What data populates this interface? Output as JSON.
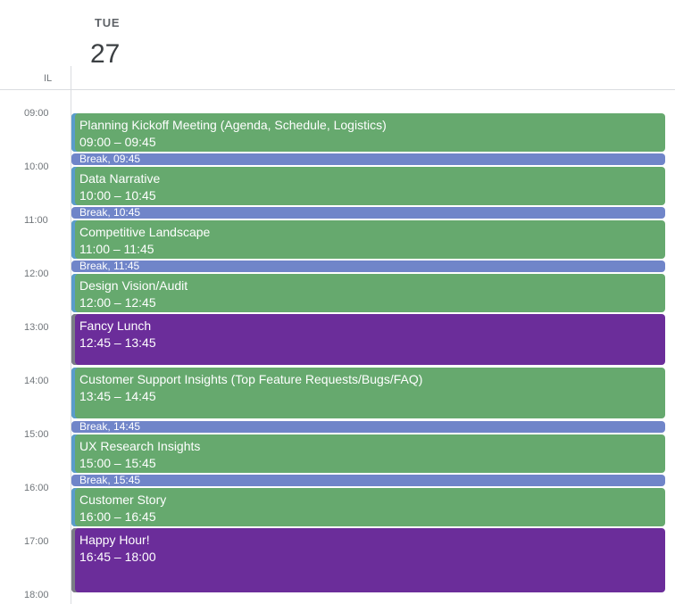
{
  "header": {
    "day_name": "TUE",
    "day_number": "27",
    "timezone": "IL"
  },
  "hours": [
    "09:00",
    "10:00",
    "11:00",
    "12:00",
    "13:00",
    "14:00",
    "15:00",
    "16:00",
    "17:00",
    "18:00"
  ],
  "events": [
    {
      "title": "Planning Kickoff Meeting (Agenda, Schedule, Logistics)",
      "time": "09:00 – 09:45"
    },
    {
      "title": "Data Narrative",
      "time": "10:00 – 10:45"
    },
    {
      "title": "Competitive Landscape",
      "time": "11:00 – 11:45"
    },
    {
      "title": "Design Vision/Audit",
      "time": "12:00 – 12:45"
    },
    {
      "title": "Fancy Lunch",
      "time": "12:45 – 13:45"
    },
    {
      "title": "Customer Support Insights (Top Feature Requests/Bugs/FAQ)",
      "time": "13:45 – 14:45"
    },
    {
      "title": "UX Research Insights",
      "time": "15:00 – 15:45"
    },
    {
      "title": "Customer Story",
      "time": "16:00 – 16:45"
    },
    {
      "title": "Happy Hour!",
      "time": "16:45 – 18:00"
    }
  ],
  "breaks": [
    {
      "title": "Break",
      "time": "09:45"
    },
    {
      "title": "Break",
      "time": "10:45"
    },
    {
      "title": "Break",
      "time": "11:45"
    },
    {
      "title": "Break",
      "time": "14:45"
    },
    {
      "title": "Break",
      "time": "15:45"
    }
  ],
  "colors": {
    "event_green": "#66a96e",
    "event_purple": "#6b2d9a",
    "break_blue": "#7085c9"
  }
}
